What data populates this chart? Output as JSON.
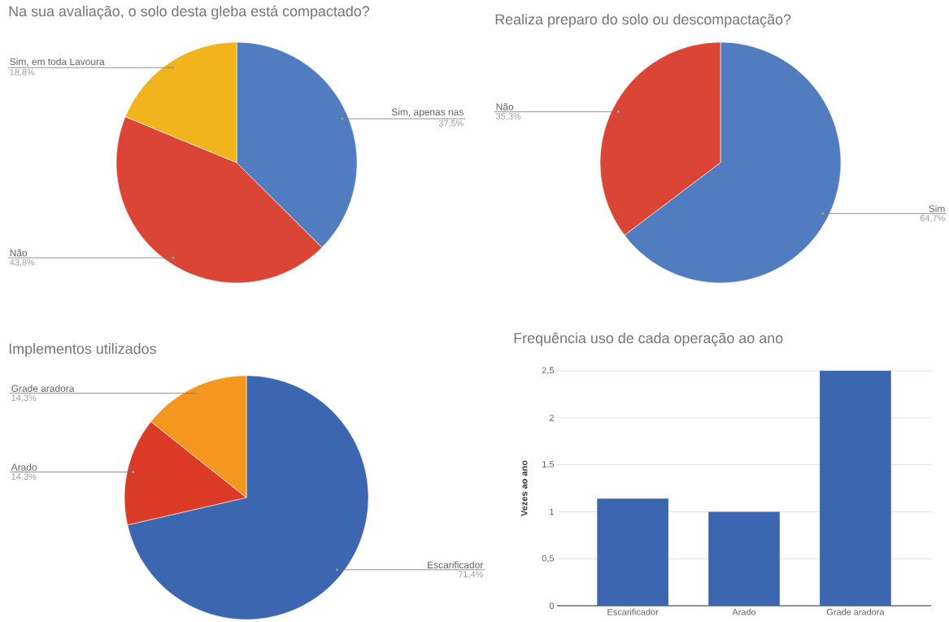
{
  "chart_data": [
    {
      "type": "pie",
      "title": "Na sua avaliação, o solo desta gleba está compactado?",
      "categories": [
        "Sim, apenas nas",
        "Não",
        "Sim, em toda Lavoura"
      ],
      "values": [
        37.5,
        43.8,
        18.8
      ],
      "colors": [
        "#517dc0",
        "#db4535",
        "#f1b41c"
      ],
      "value_labels": [
        "37,5%",
        "43,8%",
        "18,8%"
      ]
    },
    {
      "type": "pie",
      "title": "Realiza preparo do solo ou descompactação?",
      "categories": [
        "Sim",
        "Não"
      ],
      "values": [
        64.7,
        35.3
      ],
      "colors": [
        "#517dc0",
        "#db4535"
      ],
      "value_labels": [
        "64,7%",
        "35,3%"
      ]
    },
    {
      "type": "pie",
      "title": "Implementos utilizados",
      "categories": [
        "Escarificador",
        "Arado",
        "Grade aradora"
      ],
      "values": [
        71.4,
        14.3,
        14.3
      ],
      "colors": [
        "#3c66b0",
        "#db3a26",
        "#f5971f"
      ],
      "value_labels": [
        "71,4%",
        "14,3%",
        "14,3%"
      ]
    },
    {
      "type": "bar",
      "title": "Frequência uso de cada operação ao ano",
      "ylabel": "Vezes ao ano",
      "categories": [
        "Escarificador",
        "Arado",
        "Grade aradora"
      ],
      "values": [
        1.14,
        1,
        2.5
      ],
      "color": "#3c66b0",
      "ylim": [
        0,
        2.5
      ],
      "yticks": [
        0,
        {
          "value": 0.5,
          "label": "0,5"
        },
        1,
        {
          "value": 1.5,
          "label": "1,5"
        },
        2,
        {
          "value": 2.5,
          "label": "2,5"
        }
      ],
      "grid": "y"
    }
  ]
}
